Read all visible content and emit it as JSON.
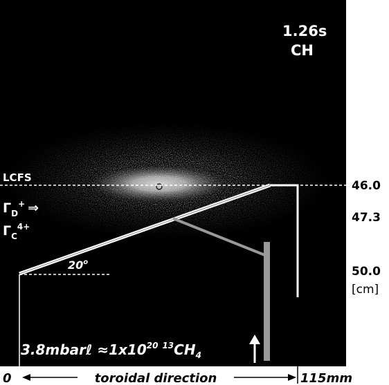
{
  "time": "1.26s",
  "species": "CH",
  "lcfs": "LCFS",
  "flux_d": {
    "symbol": "Γ",
    "sub": "D",
    "sup": "+",
    "arrow": "⇒"
  },
  "flux_c": {
    "symbol": "Γ",
    "sub": "C",
    "sup": "4+"
  },
  "angle": {
    "value": "20",
    "sup": "o"
  },
  "radial_labels": [
    "46.0",
    "47.3",
    "50.0",
    "[cm]"
  ],
  "injection": {
    "amount": "3.8mbarℓ ≈1x10",
    "exponent": "20",
    "isotope": "13",
    "molecule": "CH",
    "sub": "4"
  },
  "axis": {
    "start": "0",
    "label": "toroidal direction",
    "end": "115mm"
  }
}
